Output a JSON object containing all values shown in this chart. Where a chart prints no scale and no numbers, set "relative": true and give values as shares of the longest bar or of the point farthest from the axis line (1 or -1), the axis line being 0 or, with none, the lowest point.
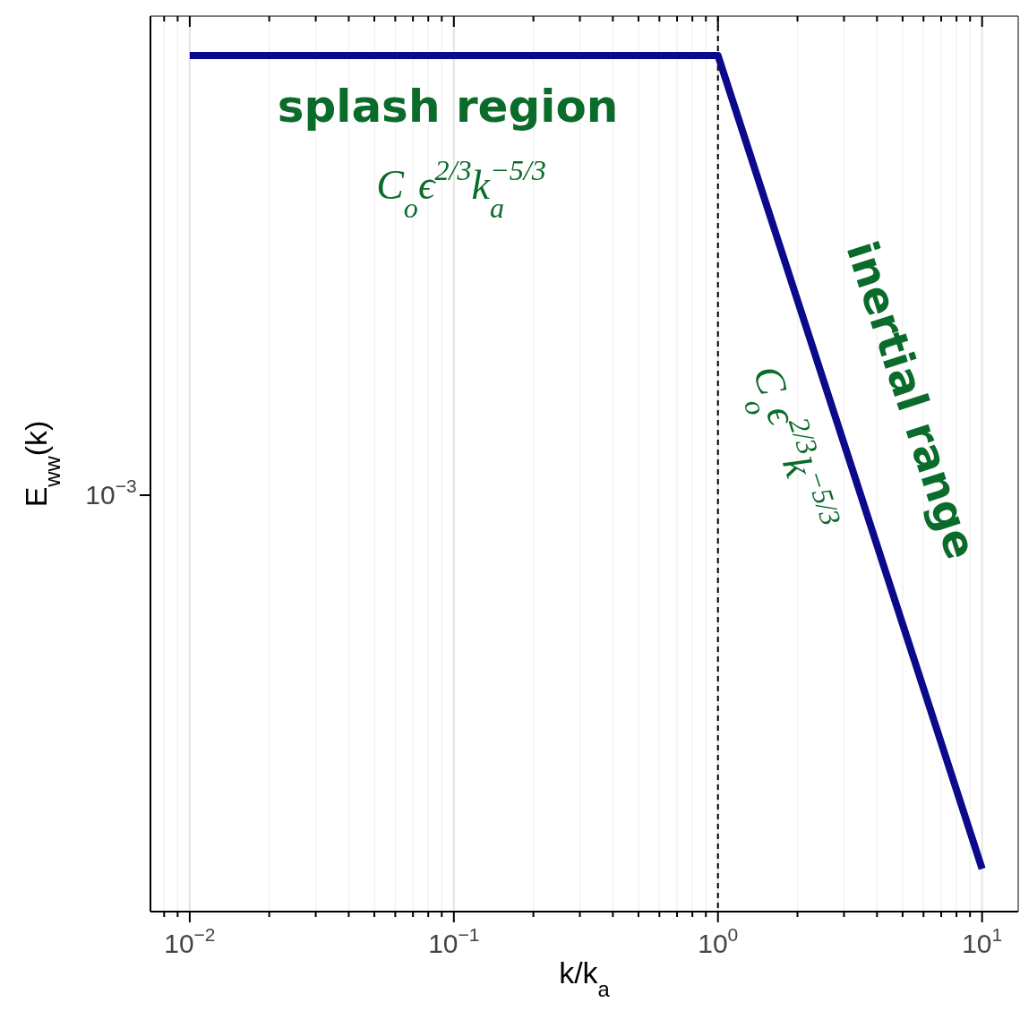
{
  "chart_data": {
    "type": "line",
    "xlabel": "k/k$_{a}$",
    "ylabel": "E$_{ww}$(k)",
    "log": "x",
    "grid": true,
    "marker": "none",
    "line_style": "solid",
    "relative": true,
    "xlim": [
      0.0071,
      13.7
    ],
    "xticks": [
      {
        "value": 0.008,
        "label": null
      },
      {
        "value": 0.009,
        "label": null
      },
      {
        "value": 0.01,
        "label": "10$^{−2}$"
      },
      {
        "value": 0.02,
        "label": null
      },
      {
        "value": 0.03,
        "label": null
      },
      {
        "value": 0.04,
        "label": null
      },
      {
        "value": 0.05,
        "label": null
      },
      {
        "value": 0.06,
        "label": null
      },
      {
        "value": 0.07,
        "label": null
      },
      {
        "value": 0.08,
        "label": null
      },
      {
        "value": 0.09,
        "label": null
      },
      {
        "value": 0.1,
        "label": "10$^{−1}$"
      },
      {
        "value": 0.2,
        "label": null
      },
      {
        "value": 0.3,
        "label": null
      },
      {
        "value": 0.4,
        "label": null
      },
      {
        "value": 0.5,
        "label": null
      },
      {
        "value": 0.6,
        "label": null
      },
      {
        "value": 0.7,
        "label": null
      },
      {
        "value": 0.8,
        "label": null
      },
      {
        "value": 0.9,
        "label": null
      },
      {
        "value": 1,
        "label": "10$^{0}$"
      },
      {
        "value": 2,
        "label": null
      },
      {
        "value": 3,
        "label": null
      },
      {
        "value": 4,
        "label": null
      },
      {
        "value": 5,
        "label": null
      },
      {
        "value": 6,
        "label": null
      },
      {
        "value": 7,
        "label": null
      },
      {
        "value": 8,
        "label": null
      },
      {
        "value": 9,
        "label": null
      },
      {
        "value": 10,
        "label": "10$^{1}$"
      }
    ],
    "series": [
      {
        "color": "#0a0a8a",
        "x": [
          0.01,
          1,
          10
        ],
        "values": [
          1,
          1,
          0.05
        ]
      }
    ],
    "ref_lines": [
      {
        "axis": "x",
        "value": 1,
        "label": null,
        "color": "#000000",
        "line_style": "dashed"
      }
    ],
    "annotations": [
      "splash region",
      "C$_{o}$ϵ$^{2/3}$k$_{a}$$^{−5/3}$",
      "inertial range",
      "C$_{o}$ϵ$^{2/3}$k$^{−5/3}$",
      "10$^{−3}$"
    ]
  }
}
